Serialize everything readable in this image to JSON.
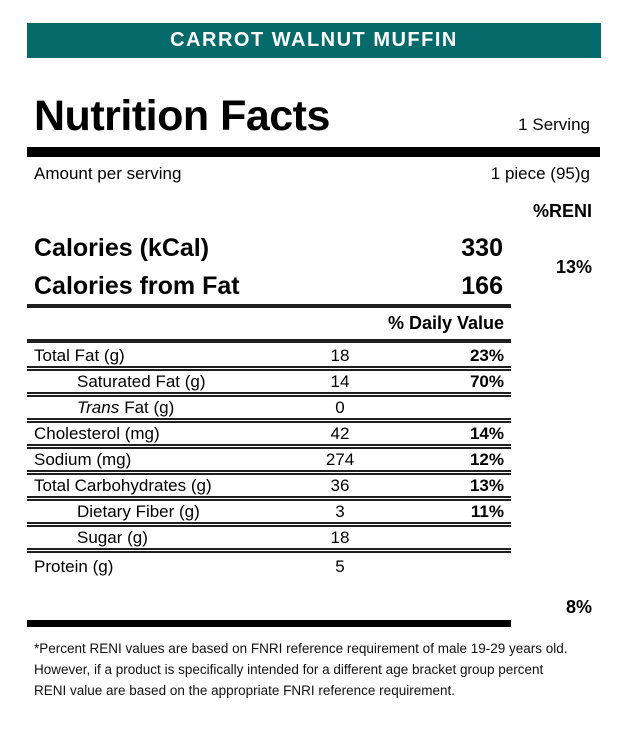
{
  "product_banner": {
    "title": "CARROT WALNUT MUFFIN"
  },
  "label": {
    "title": "Nutrition Facts",
    "servings": "1 Serving",
    "amount_per_serving": "Amount per serving",
    "serving_size": "1 piece (95)g",
    "reni_header": "%RENI"
  },
  "calories": {
    "calories_label": "Calories (kCal)",
    "calories_value": "330",
    "calories_from_fat_label": "Calories from Fat",
    "calories_from_fat_value": "166",
    "reni_percent": "13%"
  },
  "nutrients": {
    "dv_header": "% Daily Value",
    "rows": [
      {
        "label": "Total Fat (g)",
        "value": "18",
        "dv": "23%"
      },
      {
        "label": "Saturated Fat (g)",
        "value": "14",
        "dv": "70%"
      },
      {
        "label_italic": "Trans",
        "label": "Fat (g)",
        "value": "0",
        "dv": ""
      },
      {
        "label": "Cholesterol (mg)",
        "value": "42",
        "dv": "14%"
      },
      {
        "label": "Sodium (mg)",
        "value": "274",
        "dv": "12%"
      },
      {
        "label": "Total Carbohydrates (g)",
        "value": "36",
        "dv": "13%"
      },
      {
        "label": "Dietary Fiber (g)",
        "value": "3",
        "dv": "11%"
      },
      {
        "label": "Sugar (g)",
        "value": "18",
        "dv": ""
      },
      {
        "label": "Protein (g)",
        "value": "5",
        "dv": "",
        "reni": "8%"
      }
    ]
  },
  "footnote": "*Percent RENI values are based on FNRI reference requirement of male 19-29 years old. However, if a product is specifically intended for a different age bracket group percent RENI value are based on the appropriate FNRI reference requirement.",
  "colors": {
    "banner_bg": "#056a6a",
    "banner_text": "#ffffff",
    "text": "#000000"
  }
}
